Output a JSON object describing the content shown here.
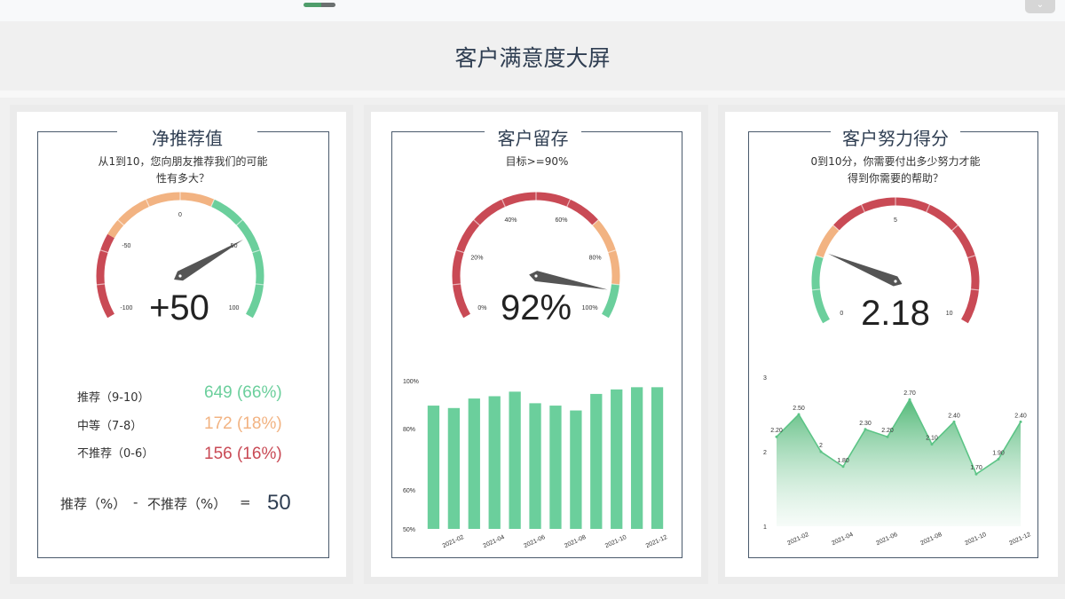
{
  "page": {
    "title": "客户满意度大屏"
  },
  "ui": {
    "collapse_icon": "chevron-down-icon"
  },
  "colors": {
    "red": "#c94a55",
    "orange": "#f2b382",
    "green": "#6bcf9c",
    "needle": "#555555",
    "title": "#2f3e52"
  },
  "nps": {
    "title": "净推荐值",
    "question": "从1到10，您向朋友推荐我们的可能性有多大？",
    "question_lines": [
      "从1到10，您向朋友推荐我们的可能",
      "性有多大？"
    ],
    "gauge": {
      "min": -100,
      "max": 100,
      "value": 50,
      "value_label": "+50",
      "tick_labels": [
        "-100",
        "-50",
        "0",
        "50",
        "100"
      ],
      "bands": [
        {
          "to": -50,
          "color": "red"
        },
        {
          "to": 20,
          "color": "orange"
        },
        {
          "to": 100,
          "color": "green"
        }
      ]
    },
    "breakdown": [
      {
        "label": "推荐（9-10）",
        "value": "649 (66%)",
        "color": "green"
      },
      {
        "label": "中等（7-8）",
        "value": "172 (18%)",
        "color": "orange"
      },
      {
        "label": "不推荐（0-6）",
        "value": "156 (16%)",
        "color": "red"
      }
    ],
    "formula": {
      "left": "推荐（%）",
      "minus": "-",
      "right": "不推荐（%）",
      "equals": "=",
      "result": "50"
    }
  },
  "retention": {
    "title": "客户留存",
    "target": "目标>=90%",
    "gauge": {
      "min": 0,
      "max": 100,
      "value": 92,
      "value_label": "92%",
      "tick_labels": [
        "0%",
        "20%",
        "40%",
        "60%",
        "80%",
        "100%"
      ],
      "bands": [
        {
          "to": 70,
          "color": "red"
        },
        {
          "to": 90,
          "color": "orange"
        },
        {
          "to": 100,
          "color": "green"
        }
      ]
    }
  },
  "effort": {
    "title": "客户努力得分",
    "question_lines": [
      "0到10分，你需要付出多少努力才能",
      "得到你需要的帮助？"
    ],
    "gauge": {
      "min": 0,
      "max": 10,
      "value": 2.18,
      "value_label": "2.18",
      "tick_labels": [
        "0",
        "5",
        "10"
      ],
      "bands": [
        {
          "to": 2,
          "color": "green"
        },
        {
          "to": 3,
          "color": "orange"
        },
        {
          "to": 10,
          "color": "red"
        }
      ]
    }
  },
  "chart_data": [
    {
      "type": "bar",
      "categories": [
        "2021-01",
        "2021-02",
        "2021-03",
        "2021-04",
        "2021-05",
        "2021-06",
        "2021-07",
        "2021-08",
        "2021-09",
        "2021-10",
        "2021-11",
        "2021-12"
      ],
      "x_tick_labels": [
        "2021-02",
        "2021-04",
        "2021-06",
        "2021-08",
        "2021-10",
        "2021-12"
      ],
      "values": [
        89,
        88,
        92,
        93,
        95,
        90,
        89,
        87,
        94,
        96,
        97,
        97
      ],
      "ylim": [
        50,
        100
      ],
      "y_scale": "log",
      "y_tick_labels": [
        "50%",
        "60%",
        "80%",
        "100%"
      ],
      "y_tick_values": [
        50,
        60,
        80,
        100
      ],
      "color": "#6bcf9c"
    },
    {
      "type": "area",
      "categories": [
        "2021-01",
        "2021-02",
        "2021-03",
        "2021-04",
        "2021-05",
        "2021-06",
        "2021-07",
        "2021-08",
        "2021-09",
        "2021-10",
        "2021-11",
        "2021-12"
      ],
      "x_tick_labels": [
        "2021-02",
        "2021-04",
        "2021-06",
        "2021-08",
        "2021-10",
        "2021-12"
      ],
      "values": [
        2.2,
        2.5,
        2.0,
        1.8,
        2.3,
        2.2,
        2.7,
        2.1,
        2.4,
        1.7,
        1.9,
        2.4
      ],
      "data_labels": [
        "2.20",
        "2.50",
        "2",
        "1.80",
        "2.30",
        "2.20",
        "2.70",
        "2.10",
        "2.40",
        "1.70",
        "1.90",
        "2.40"
      ],
      "ylim": [
        1,
        3
      ],
      "y_tick_labels": [
        "1",
        "2",
        "3"
      ],
      "y_tick_values": [
        1,
        2,
        3
      ],
      "color": "#5cc486"
    }
  ]
}
